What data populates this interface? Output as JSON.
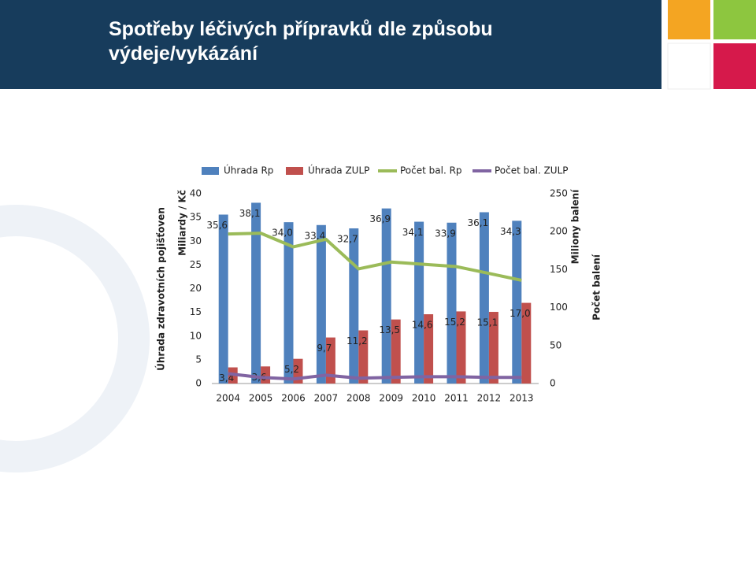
{
  "chart_data": {
    "type": "combo",
    "title": "Spotřeby léčivých přípravků dle způsobu výdeje/vykázání",
    "ylabel_group": "Úhrada zdravotních pojišťoven",
    "ylabel": "Miliardy / Kč",
    "y2label": "Miliony balení",
    "y2label_group": "Počet balení",
    "categories": [
      "2004",
      "2005",
      "2006",
      "2007",
      "2008",
      "2009",
      "2010",
      "2011",
      "2012",
      "2013"
    ],
    "ylim": [
      0,
      40
    ],
    "yticks": [
      0,
      5,
      10,
      15,
      20,
      25,
      30,
      35,
      40
    ],
    "y2lim": [
      0,
      250
    ],
    "y2ticks": [
      0,
      50,
      100,
      150,
      200,
      250
    ],
    "series": [
      {
        "name": "Úhrada Rp",
        "type": "bar",
        "color": "#4f81bd",
        "values": [
          35.6,
          38.1,
          34.0,
          33.4,
          32.7,
          36.9,
          34.1,
          33.9,
          36.1,
          34.3
        ],
        "value_labels": [
          "35,6",
          "38,1",
          "34,0",
          "33,4",
          "32,7",
          "36,9",
          "34,1",
          "33,9",
          "36,1",
          "34,3"
        ]
      },
      {
        "name": "Úhrada ZULP",
        "type": "bar",
        "color": "#c0504d",
        "values": [
          3.4,
          3.6,
          5.2,
          9.7,
          11.2,
          13.5,
          14.6,
          15.2,
          15.1,
          17.0
        ],
        "value_labels": [
          "3,4",
          "3,6",
          "5,2",
          "9,7",
          "11,2",
          "13,5",
          "14,6",
          "15,2",
          "15,1",
          "17,0"
        ]
      },
      {
        "name": "Počet bal. Rp",
        "type": "line",
        "axis": "y2",
        "color": "#9bbb59",
        "values": [
          197,
          198,
          180,
          190,
          151,
          160,
          157,
          154,
          145,
          136
        ]
      },
      {
        "name": "Počet bal. ZULP",
        "type": "line",
        "axis": "y2",
        "color": "#8064a2",
        "values": [
          13,
          8,
          6,
          11,
          7,
          8,
          9,
          9,
          8,
          8
        ]
      }
    ]
  }
}
